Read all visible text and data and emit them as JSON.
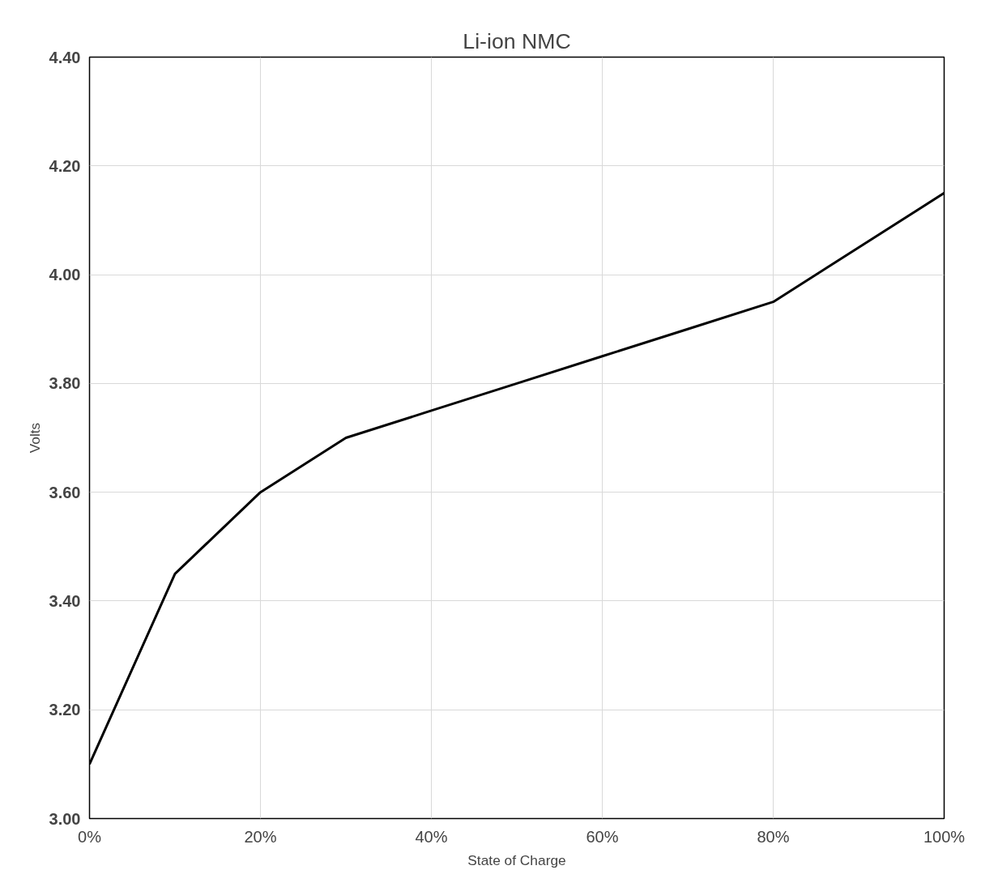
{
  "chart_data": {
    "type": "line",
    "title": "Li-ion NMC",
    "xlabel": "State of Charge",
    "ylabel": "Volts",
    "x": [
      0,
      10,
      20,
      30,
      40,
      50,
      60,
      70,
      80,
      90,
      100
    ],
    "series": [
      {
        "color": "#000000",
        "values": [
          3.1,
          3.45,
          3.6,
          3.7,
          3.75,
          3.8,
          3.85,
          3.9,
          3.95,
          4.05,
          4.15
        ]
      }
    ],
    "xlim": [
      0,
      100
    ],
    "xticks": [
      {
        "value": 0,
        "label": "0%"
      },
      {
        "value": 20,
        "label": "20%"
      },
      {
        "value": 40,
        "label": "40%"
      },
      {
        "value": 60,
        "label": "60%"
      },
      {
        "value": 80,
        "label": "80%"
      },
      {
        "value": 100,
        "label": "100%"
      }
    ],
    "ylim": [
      3.0,
      4.4
    ],
    "yticks": [
      {
        "value": 3.0,
        "label": "3.00"
      },
      {
        "value": 3.2,
        "label": "3.20"
      },
      {
        "value": 3.4,
        "label": "3.40"
      },
      {
        "value": 3.6,
        "label": "3.60"
      },
      {
        "value": 3.8,
        "label": "3.80"
      },
      {
        "value": 4.0,
        "label": "4.00"
      },
      {
        "value": 4.2,
        "label": "4.20"
      },
      {
        "value": 4.4,
        "label": "4.40"
      }
    ],
    "grid": true,
    "marker": "none",
    "line_style": "solid"
  }
}
